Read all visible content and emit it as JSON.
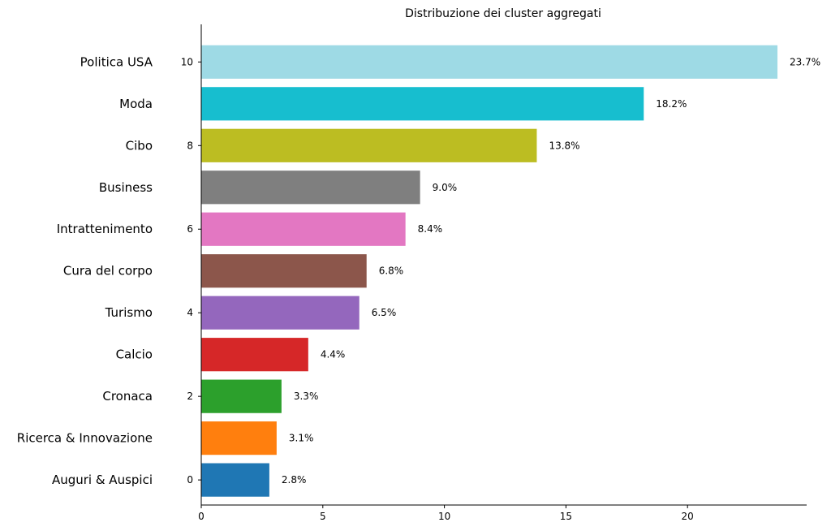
{
  "chart_data": {
    "type": "bar",
    "orientation": "horizontal",
    "title": "Distribuzione dei cluster aggregati",
    "xlabel": "",
    "ylabel": "",
    "xlim": [
      0,
      24.9
    ],
    "ylim": [
      -0.6,
      10.9
    ],
    "grid": false,
    "x_ticks": [
      "0",
      "5",
      "10",
      "15",
      "20"
    ],
    "y_ticks": [
      "0",
      "2",
      "4",
      "6",
      "8",
      "10"
    ],
    "bars": [
      {
        "index": 0,
        "label": "Auguri & Auspici",
        "value": 2.8,
        "value_label": "2.8%",
        "color": "#1f77b4"
      },
      {
        "index": 1,
        "label": "Ricerca & Innovazione",
        "value": 3.1,
        "value_label": "3.1%",
        "color": "#ff7f0e"
      },
      {
        "index": 2,
        "label": "Cronaca",
        "value": 3.3,
        "value_label": "3.3%",
        "color": "#2ca02c"
      },
      {
        "index": 3,
        "label": "Calcio",
        "value": 4.4,
        "value_label": "4.4%",
        "color": "#d62728"
      },
      {
        "index": 4,
        "label": "Turismo",
        "value": 6.5,
        "value_label": "6.5%",
        "color": "#9467bd"
      },
      {
        "index": 5,
        "label": "Cura del corpo",
        "value": 6.8,
        "value_label": "6.8%",
        "color": "#8c564b"
      },
      {
        "index": 6,
        "label": "Intrattenimento",
        "value": 8.4,
        "value_label": "8.4%",
        "color": "#e377c2"
      },
      {
        "index": 7,
        "label": "Business",
        "value": 9.0,
        "value_label": "9.0%",
        "color": "#7f7f7f"
      },
      {
        "index": 8,
        "label": "Cibo",
        "value": 13.8,
        "value_label": "13.8%",
        "color": "#bcbd22"
      },
      {
        "index": 9,
        "label": "Moda",
        "value": 18.2,
        "value_label": "18.2%",
        "color": "#17becf"
      },
      {
        "index": 10,
        "label": "Politica USA",
        "value": 23.7,
        "value_label": "23.7%",
        "color": "#9edae5"
      }
    ]
  }
}
